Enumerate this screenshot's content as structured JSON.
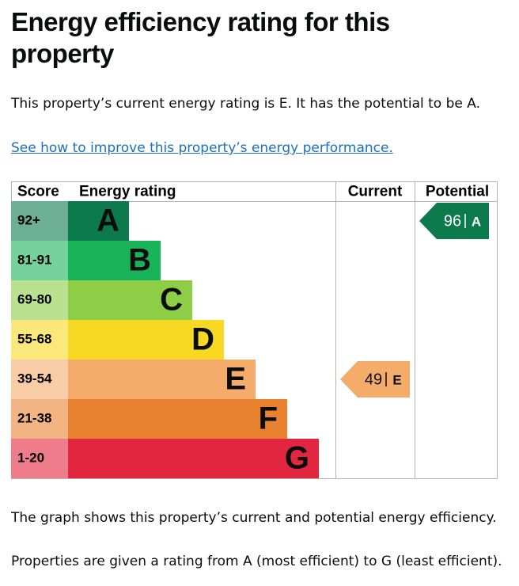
{
  "header": {
    "title": "Energy efficiency rating for this property"
  },
  "intro": "This property’s current energy rating is E. It has the potential to be A.",
  "link": "See how to improve this property’s energy performance.",
  "graph": {
    "headers": [
      "Score",
      "Energy rating",
      "Current",
      "Potential"
    ],
    "bands": [
      {
        "score": "92+",
        "letter": "A",
        "color": "#0c7a4d"
      },
      {
        "score": "81-91",
        "letter": "B",
        "color": "#19b459"
      },
      {
        "score": "69-80",
        "letter": "C",
        "color": "#8dce46"
      },
      {
        "score": "55-68",
        "letter": "D",
        "color": "#f7d924"
      },
      {
        "score": "39-54",
        "letter": "E",
        "color": "#f4ac6a"
      },
      {
        "score": "21-38",
        "letter": "F",
        "color": "#e9822f"
      },
      {
        "score": "1-20",
        "letter": "G",
        "color": "#e3263f"
      }
    ],
    "current": {
      "score": 49,
      "band": "E"
    },
    "potential": {
      "score": 96,
      "band": "A"
    }
  },
  "notes": [
    "The graph shows this property’s current and potential energy efficiency.",
    "Properties are given a rating from A (most efficient) to G (least efficient)."
  ]
}
